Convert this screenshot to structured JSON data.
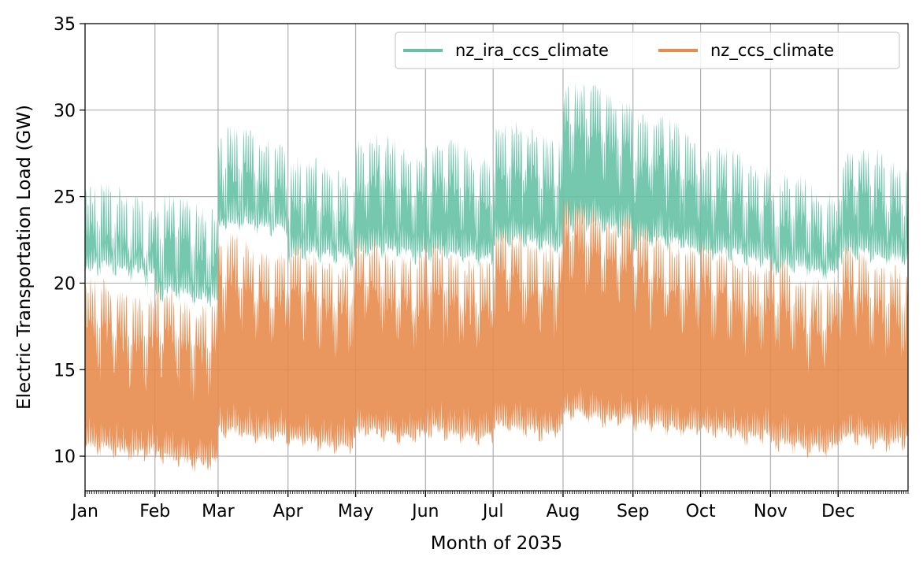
{
  "chart_data": {
    "type": "area",
    "title": "",
    "xlabel": "Month of 2035",
    "ylabel": "Electric Transportation Load (GW)",
    "ylim": [
      8,
      35
    ],
    "xlim": [
      0,
      365
    ],
    "grid": true,
    "legend_position": "top-right",
    "y_ticks": [
      10,
      15,
      20,
      25,
      30,
      35
    ],
    "months": [
      "Jan",
      "Feb",
      "Mar",
      "Apr",
      "May",
      "Jun",
      "Jul",
      "Aug",
      "Sep",
      "Oct",
      "Nov",
      "Dec"
    ],
    "month_start_day": [
      0,
      31,
      59,
      90,
      120,
      151,
      181,
      212,
      243,
      273,
      304,
      334
    ],
    "series": [
      {
        "name": "nz_ira_ccs_climate",
        "color": "#66c2a5",
        "monthly_min": [
          20.0,
          18.5,
          22.5,
          20.8,
          21.0,
          20.8,
          21.5,
          22.5,
          21.5,
          20.8,
          20.0,
          20.8
        ],
        "monthly_max": [
          26.0,
          25.5,
          29.3,
          27.5,
          28.8,
          28.5,
          29.5,
          31.8,
          30.0,
          28.0,
          26.5,
          28.2
        ]
      },
      {
        "name": "nz_ccs_climate",
        "color": "#e78c4e",
        "monthly_min": [
          9.6,
          9.0,
          10.5,
          10.0,
          10.5,
          10.5,
          10.8,
          11.5,
          11.0,
          10.5,
          9.8,
          10.2
        ],
        "monthly_max": [
          20.5,
          20.0,
          23.0,
          22.5,
          22.8,
          22.5,
          23.5,
          25.2,
          23.5,
          22.5,
          21.5,
          22.3
        ]
      }
    ]
  }
}
